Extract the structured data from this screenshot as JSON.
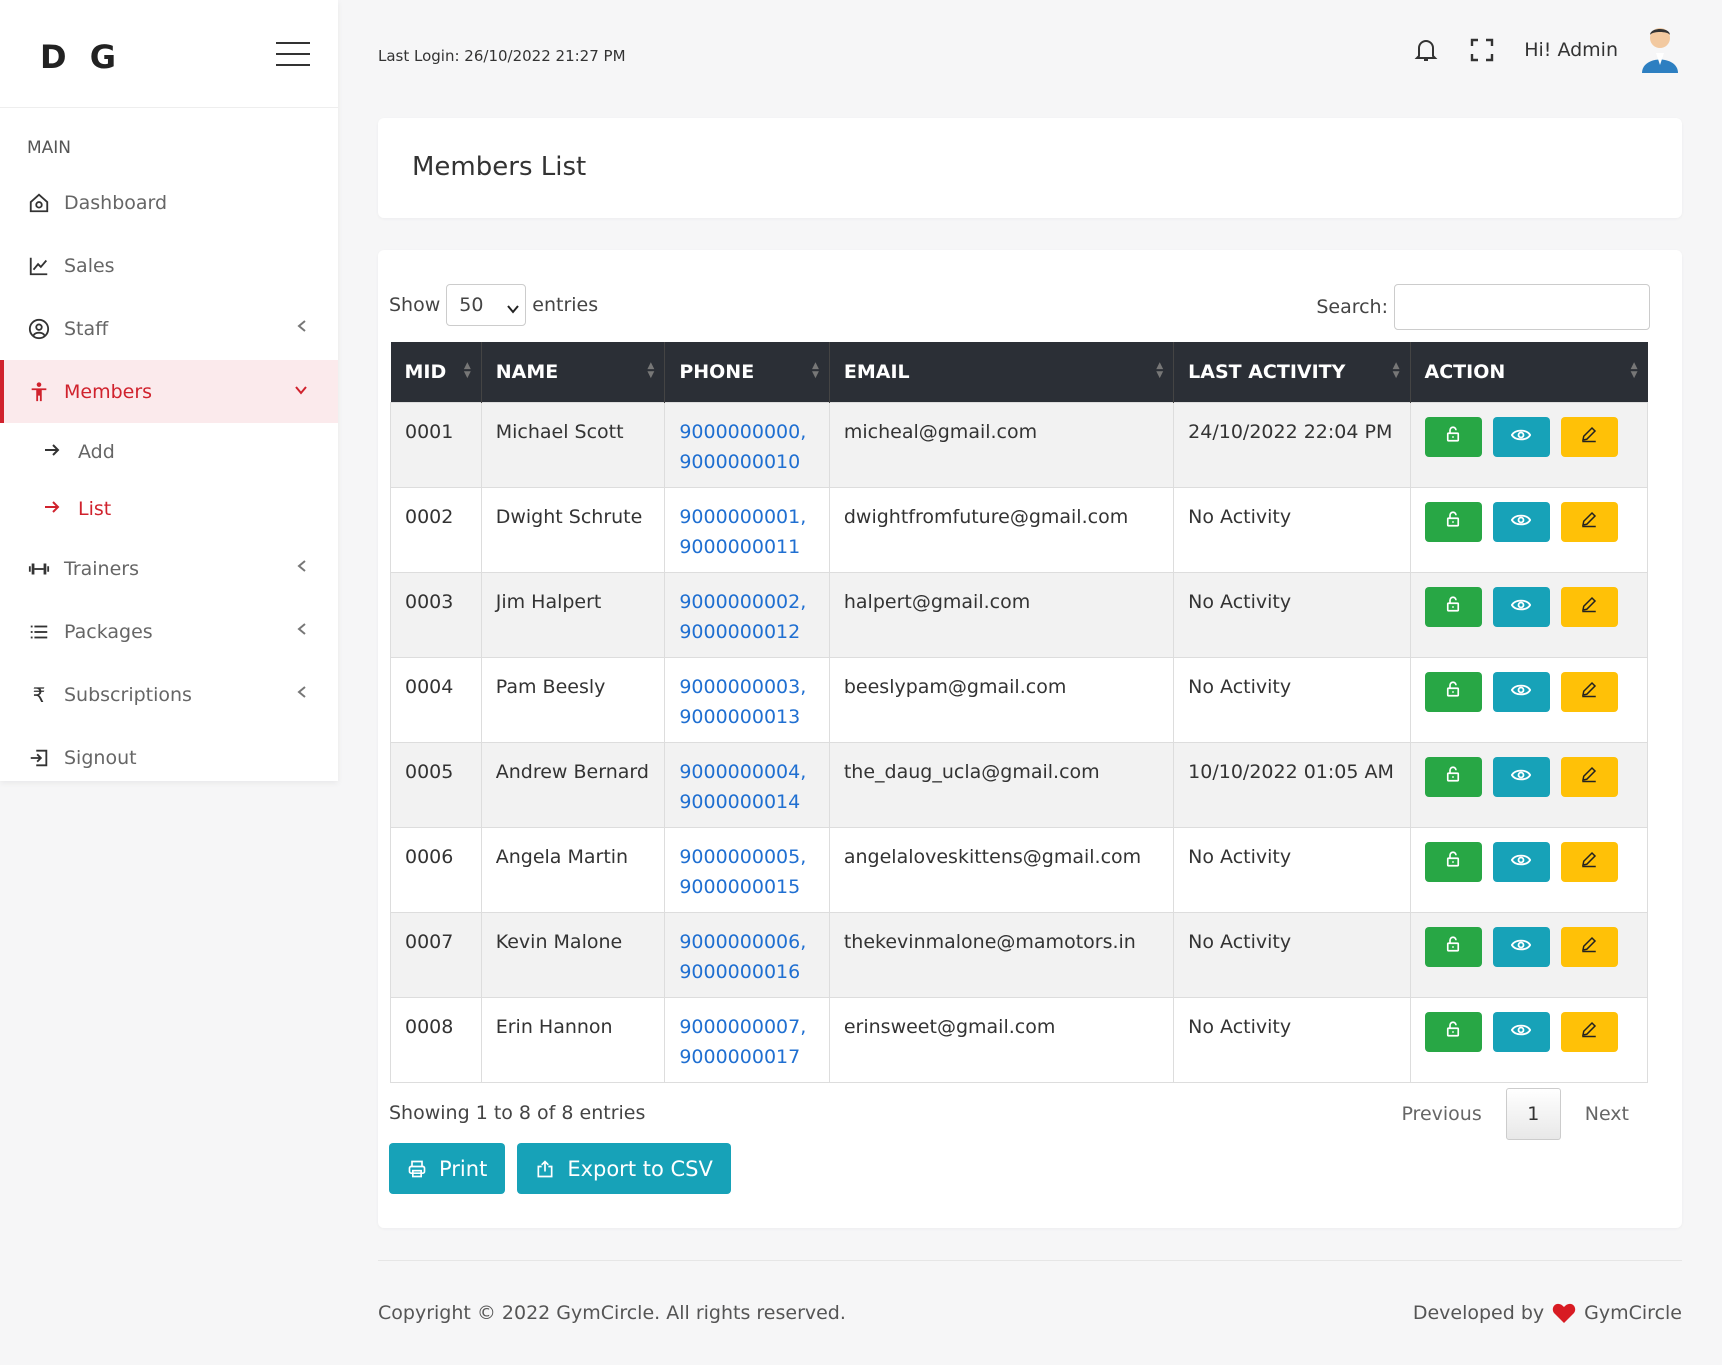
{
  "brand": "D G",
  "sidebar": {
    "section": "MAIN",
    "items": [
      {
        "label": "Dashboard"
      },
      {
        "label": "Sales"
      },
      {
        "label": "Staff"
      },
      {
        "label": "Members"
      },
      {
        "label": "Trainers"
      },
      {
        "label": "Packages"
      },
      {
        "label": "Subscriptions"
      },
      {
        "label": "Signout"
      }
    ],
    "members_sub": [
      {
        "label": "Add"
      },
      {
        "label": "List"
      }
    ]
  },
  "topbar": {
    "last_login": "Last Login: 26/10/2022 21:27 PM",
    "greeting": "Hi! Admin"
  },
  "page_title": "Members List",
  "table_controls": {
    "show_label": "Show",
    "entries_value": "50",
    "entries_label": "entries",
    "search_label": "Search:",
    "search_value": ""
  },
  "table": {
    "headers": [
      "MID",
      "NAME",
      "PHONE",
      "EMAIL",
      "LAST ACTIVITY",
      "ACTION"
    ],
    "rows": [
      {
        "mid": "0001",
        "name": "Michael Scott",
        "phone1": "9000000000,",
        "phone2": "9000000010",
        "email": "micheal@gmail.com",
        "activity": "24/10/2022 22:04 PM"
      },
      {
        "mid": "0002",
        "name": "Dwight Schrute",
        "phone1": "9000000001,",
        "phone2": "9000000011",
        "email": "dwightfromfuture@gmail.com",
        "activity": "No Activity"
      },
      {
        "mid": "0003",
        "name": "Jim Halpert",
        "phone1": "9000000002,",
        "phone2": "9000000012",
        "email": "halpert@gmail.com",
        "activity": "No Activity"
      },
      {
        "mid": "0004",
        "name": "Pam Beesly",
        "phone1": "9000000003,",
        "phone2": "9000000013",
        "email": "beeslypam@gmail.com",
        "activity": "No Activity"
      },
      {
        "mid": "0005",
        "name": "Andrew Bernard",
        "phone1": "9000000004,",
        "phone2": "9000000014",
        "email": "the_daug_ucla@gmail.com",
        "activity": "10/10/2022 01:05 AM"
      },
      {
        "mid": "0006",
        "name": "Angela Martin",
        "phone1": "9000000005,",
        "phone2": "9000000015",
        "email": "angelaloveskittens@gmail.com",
        "activity": "No Activity"
      },
      {
        "mid": "0007",
        "name": "Kevin Malone",
        "phone1": "9000000006,",
        "phone2": "9000000016",
        "email": "thekevinmalone@mamotors.in",
        "activity": "No Activity"
      },
      {
        "mid": "0008",
        "name": "Erin Hannon",
        "phone1": "9000000007,",
        "phone2": "9000000017",
        "email": "erinsweet@gmail.com",
        "activity": "No Activity"
      }
    ]
  },
  "pagination": {
    "info": "Showing 1 to 8 of 8 entries",
    "previous": "Previous",
    "current": "1",
    "next": "Next"
  },
  "actions": {
    "print": "Print",
    "export": "Export to CSV"
  },
  "footer": {
    "copyright": "Copyright © 2022 GymCircle. All rights reserved.",
    "developed_by": "Developed by",
    "developer": "GymCircle"
  },
  "colors": {
    "accent": "#d0222d",
    "table_header": "#2b2f36",
    "btn_green": "#28a745",
    "btn_cyan": "#17a2b8",
    "btn_yellow": "#ffc107",
    "link": "#1f6fd1"
  },
  "icons": [
    "menu-icon",
    "home-icon",
    "chart-line-icon",
    "user-circle-icon",
    "person-icon",
    "dumbbell-icon",
    "list-icon",
    "rupee-icon",
    "logout-icon",
    "bell-icon",
    "fullscreen-icon",
    "lock-icon",
    "eye-icon",
    "pencil-icon",
    "printer-icon",
    "export-icon",
    "heart-icon"
  ]
}
